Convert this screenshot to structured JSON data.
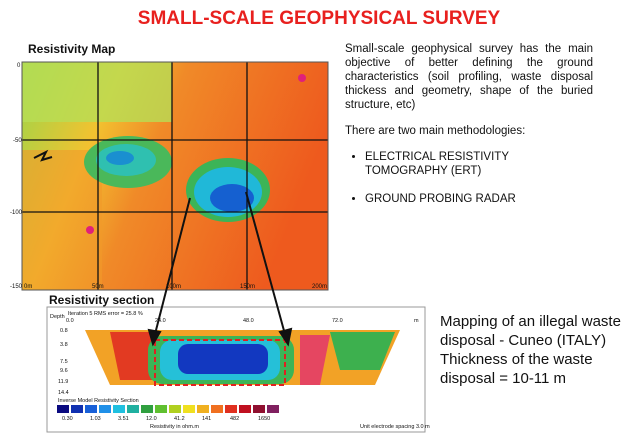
{
  "title": "SMALL-SCALE GEOPHYSICAL SURVEY",
  "map": {
    "label": "Resistivity Map",
    "y_labels": [
      "0",
      "-50",
      "-100",
      "-150"
    ],
    "x_labels": [
      "0m",
      "50m",
      "100m",
      "150m",
      "200m"
    ]
  },
  "section": {
    "label": "Resistivity section",
    "depth_label": "Depth",
    "header": "Iteration 5 RMS error = 25.8 %",
    "x_labels": [
      "0.0",
      "24.0",
      "48.0",
      "72.0",
      "m"
    ],
    "depth_values": [
      "0.8",
      "3.8",
      "7.5",
      "9.6",
      "11.9",
      "14.4"
    ],
    "legend_title": "Inverse Model Resistivity Section",
    "scale": [
      "0.30",
      "1.03",
      "3.51",
      "12.0",
      "41.2",
      "141",
      "482",
      "1650"
    ],
    "scale_unit": "Resistivity in ohm.m",
    "spacing": "Unit electrode spacing 3.0 m"
  },
  "description": {
    "intro": "Small-scale geophysical survey has the main objective of better defining the ground characteristics (soil profiling, waste disposal thickess and geometry, shape of the buried structure, etc)",
    "lead": "There are two main methodologies:",
    "items": [
      "ELECTRICAL RESISTIVITY TOMOGRAPHY (ERT)",
      "GROUND PROBING RADAR"
    ]
  },
  "caption": [
    "Mapping of an illegal waste disposal  - Cuneo (ITALY)",
    "Thickness of the waste disposal = 10-11 m"
  ]
}
